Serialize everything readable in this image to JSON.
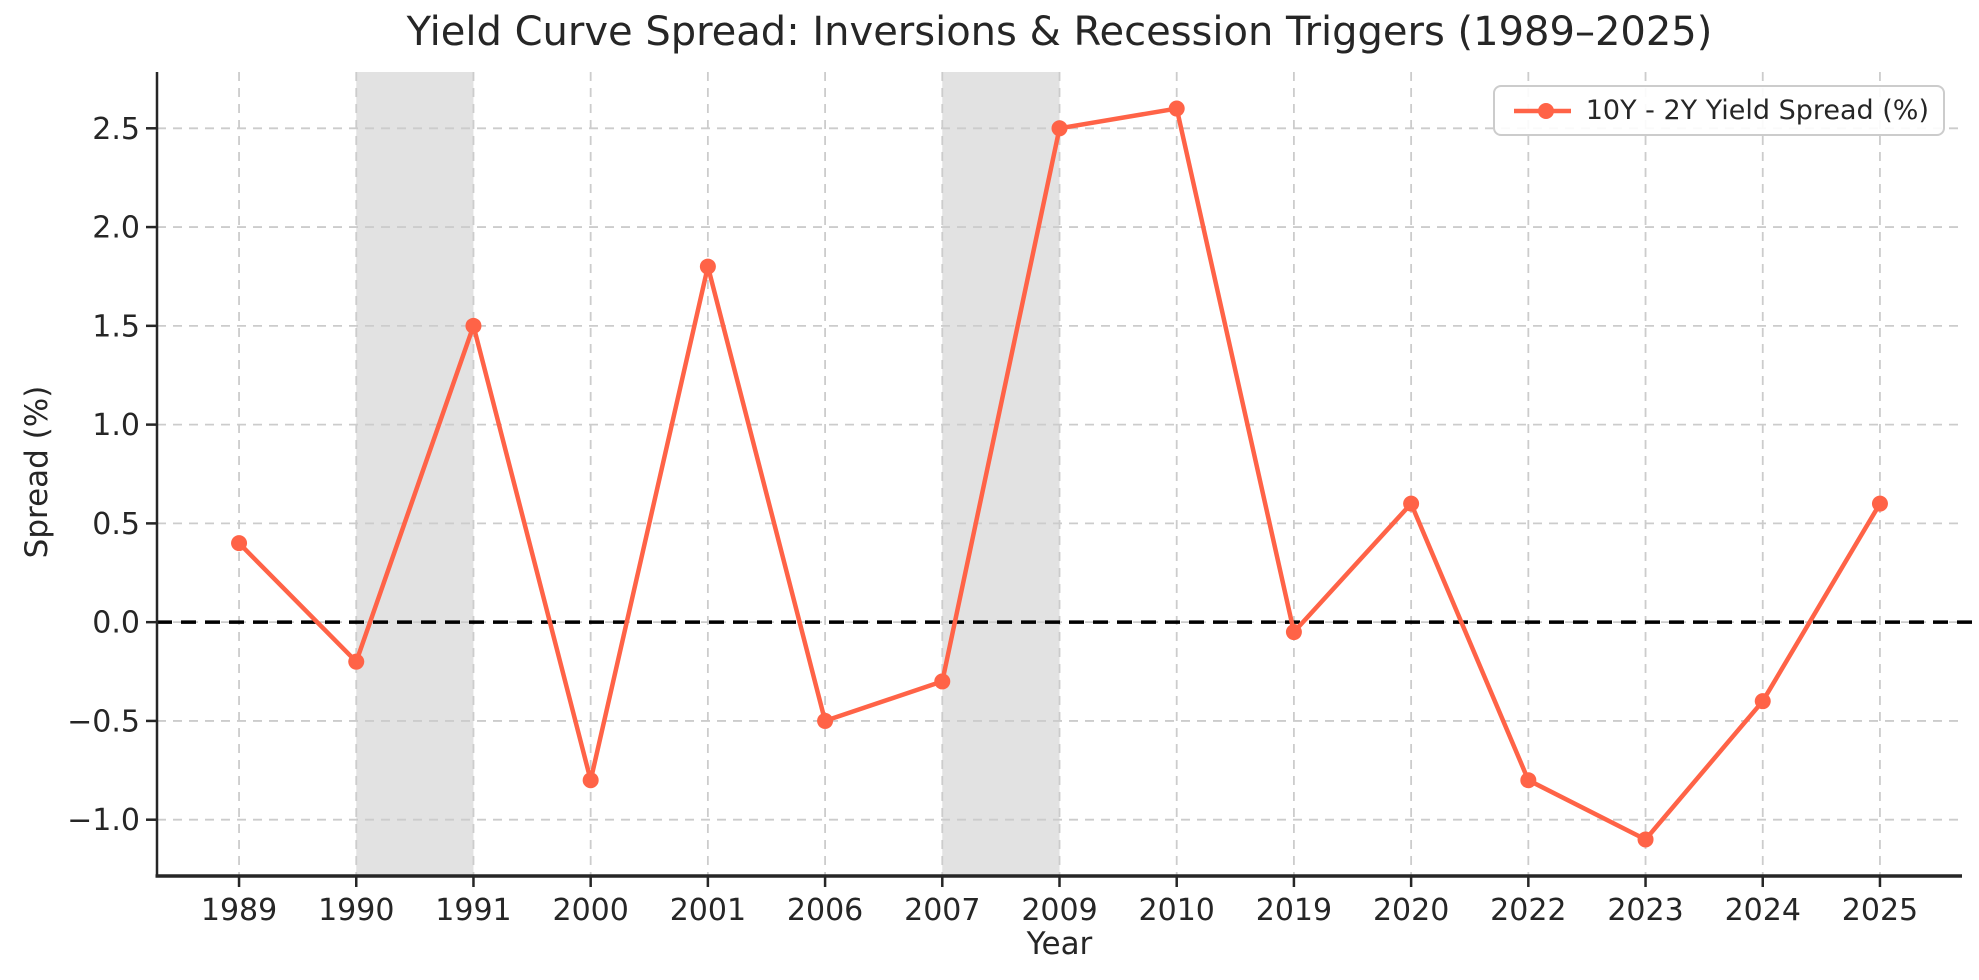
{
  "chart_data": {
    "type": "line",
    "title": "Yield Curve Spread: Inversions & Recession Triggers (1989–2025)",
    "xlabel": "Year",
    "ylabel": "Spread (%)",
    "categories": [
      "1989",
      "1990",
      "1991",
      "2000",
      "2001",
      "2006",
      "2007",
      "2009",
      "2010",
      "2019",
      "2020",
      "2022",
      "2023",
      "2024",
      "2025"
    ],
    "series": [
      {
        "name": "10Y - 2Y Yield Spread (%)",
        "values": [
          0.4,
          -0.2,
          1.5,
          -0.8,
          1.8,
          -0.5,
          -0.3,
          2.5,
          2.6,
          -0.05,
          0.6,
          -0.8,
          -1.1,
          -0.4,
          0.6
        ]
      }
    ],
    "y_ticks": [
      -1.0,
      -0.5,
      0.0,
      0.5,
      1.0,
      1.5,
      2.0,
      2.5
    ],
    "ylim": [
      -1.285,
      2.785
    ],
    "xlim_index": [
      -0.7,
      14.7
    ],
    "zero_line_y": 0,
    "recession_bands": [
      {
        "from": "1990",
        "to": "1991"
      },
      {
        "from": "2007",
        "to": "2009"
      }
    ],
    "legend": {
      "label": "10Y - 2Y Yield Spread (%)",
      "position": "upper-right"
    },
    "grid": true,
    "colors": {
      "line": "#FF6347",
      "recession_band": "#E2E2E2",
      "grid": "#CCCCCC",
      "zero_line": "#000000",
      "axis": "#262626",
      "text": "#262626"
    }
  }
}
